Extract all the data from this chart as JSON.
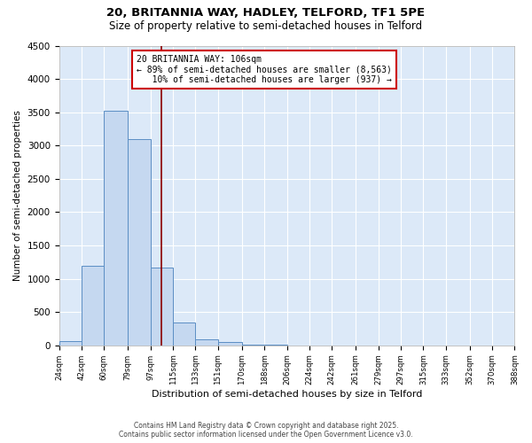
{
  "title1": "20, BRITANNIA WAY, HADLEY, TELFORD, TF1 5PE",
  "title2": "Size of property relative to semi-detached houses in Telford",
  "xlabel": "Distribution of semi-detached houses by size in Telford",
  "ylabel": "Number of semi-detached properties",
  "bin_edges": [
    24,
    42,
    60,
    79,
    97,
    115,
    133,
    151,
    170,
    188,
    206,
    224,
    242,
    261,
    279,
    297,
    315,
    333,
    352,
    370,
    388
  ],
  "bar_heights": [
    70,
    1200,
    3520,
    3100,
    1170,
    350,
    90,
    50,
    15,
    5,
    3,
    2,
    1,
    1,
    0,
    0,
    0,
    0,
    0,
    0
  ],
  "bar_color": "#c5d8f0",
  "bar_edge_color": "#5b8ec4",
  "property_size": 106,
  "property_line_color": "#8b0000",
  "annotation_line1": "20 BRITANNIA WAY: 106sqm",
  "annotation_line2": "← 89% of semi-detached houses are smaller (8,563)",
  "annotation_line3": "   10% of semi-detached houses are larger (937) →",
  "annotation_box_color": "white",
  "annotation_box_edge_color": "#cc0000",
  "ylim": [
    0,
    4500
  ],
  "yticks": [
    0,
    500,
    1000,
    1500,
    2000,
    2500,
    3000,
    3500,
    4000,
    4500
  ],
  "bg_color": "#dce9f8",
  "footer_line1": "Contains HM Land Registry data © Crown copyright and database right 2025.",
  "footer_line2": "Contains public sector information licensed under the Open Government Licence v3.0.",
  "title1_fontsize": 9.5,
  "title2_fontsize": 8.5,
  "grid_color": "#ffffff",
  "tick_labels": [
    "24sqm",
    "42sqm",
    "60sqm",
    "79sqm",
    "97sqm",
    "115sqm",
    "133sqm",
    "151sqm",
    "170sqm",
    "188sqm",
    "206sqm",
    "224sqm",
    "242sqm",
    "261sqm",
    "279sqm",
    "297sqm",
    "315sqm",
    "333sqm",
    "352sqm",
    "370sqm",
    "388sqm"
  ]
}
